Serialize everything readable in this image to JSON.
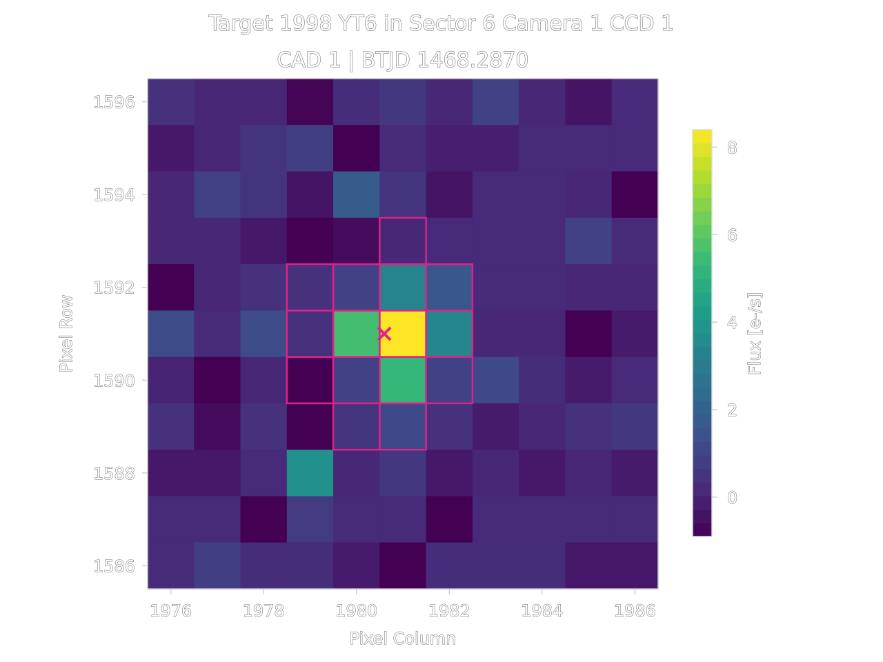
{
  "chart_data": {
    "type": "heatmap",
    "title": "Target 1998 YT6 in Sector 6 Camera 1 CCD 1",
    "subtitle": "CAD 1 | BTJD 1468.2870",
    "xlabel": "Pixel Column",
    "ylabel": "Pixel Row",
    "colorbar_label": "Flux [e-/s]",
    "colormap": "viridis",
    "color_range": [
      -0.9,
      8.4
    ],
    "x_columns": [
      1976,
      1977,
      1978,
      1979,
      1980,
      1981,
      1982,
      1983,
      1984,
      1985,
      1986
    ],
    "y_rows": [
      1596,
      1595,
      1594,
      1593,
      1592,
      1591,
      1590,
      1589,
      1588,
      1587,
      1586
    ],
    "x_ticks": [
      1976,
      1978,
      1980,
      1982,
      1984,
      1986
    ],
    "y_ticks": [
      1596,
      1594,
      1592,
      1590,
      1588,
      1586
    ],
    "colorbar_ticks": [
      0,
      2,
      4,
      6,
      8
    ],
    "flux": [
      [
        0.4,
        0.1,
        0.1,
        -0.8,
        0.3,
        0.6,
        0.1,
        0.9,
        0.1,
        -0.4,
        0.2
      ],
      [
        -0.3,
        0.1,
        0.5,
        0.8,
        -0.9,
        0.2,
        -0.1,
        -0.1,
        0.2,
        0.2,
        0.2
      ],
      [
        0.1,
        0.9,
        0.5,
        -0.4,
        1.8,
        0.5,
        -0.4,
        0.2,
        0.2,
        0.1,
        -1.0
      ],
      [
        0.1,
        0.1,
        -0.3,
        -0.9,
        -0.6,
        0.1,
        0.2,
        0.2,
        0.2,
        0.9,
        0.2
      ],
      [
        -0.9,
        0.1,
        0.4,
        0.4,
        0.9,
        3.3,
        1.6,
        0.2,
        0.2,
        0.1,
        0.1
      ],
      [
        1.2,
        0.2,
        1.2,
        0.4,
        5.6,
        8.4,
        3.4,
        0.1,
        0.1,
        -0.9,
        -0.2
      ],
      [
        0.0,
        -0.9,
        0.1,
        -0.9,
        0.9,
        5.3,
        0.9,
        1.1,
        0.3,
        -0.2,
        0.2
      ],
      [
        0.4,
        -0.6,
        0.4,
        -1.0,
        0.5,
        1.1,
        0.4,
        -0.2,
        0.1,
        0.4,
        0.6
      ],
      [
        -0.3,
        -0.3,
        0.2,
        3.8,
        0.1,
        0.6,
        -0.3,
        0.1,
        -0.3,
        0.1,
        -0.2
      ],
      [
        0.2,
        0.2,
        -0.9,
        0.7,
        0.2,
        0.2,
        -1.0,
        0.2,
        0.2,
        0.2,
        0.2
      ],
      [
        0.2,
        0.8,
        0.3,
        0.3,
        -0.2,
        -0.9,
        0.3,
        0.3,
        0.3,
        -0.3,
        -0.3
      ]
    ],
    "aperture_pixels": [
      [
        1981,
        1593
      ],
      [
        1979,
        1592
      ],
      [
        1980,
        1592
      ],
      [
        1981,
        1592
      ],
      [
        1982,
        1592
      ],
      [
        1979,
        1591
      ],
      [
        1980,
        1591
      ],
      [
        1981,
        1591
      ],
      [
        1982,
        1591
      ],
      [
        1979,
        1590
      ],
      [
        1980,
        1590
      ],
      [
        1981,
        1590
      ],
      [
        1982,
        1590
      ],
      [
        1980,
        1589
      ],
      [
        1981,
        1589
      ]
    ],
    "target_position": [
      1980.6,
      1591.0
    ],
    "aperture_color": "#e0218a",
    "marker_color": "#e0218a"
  }
}
